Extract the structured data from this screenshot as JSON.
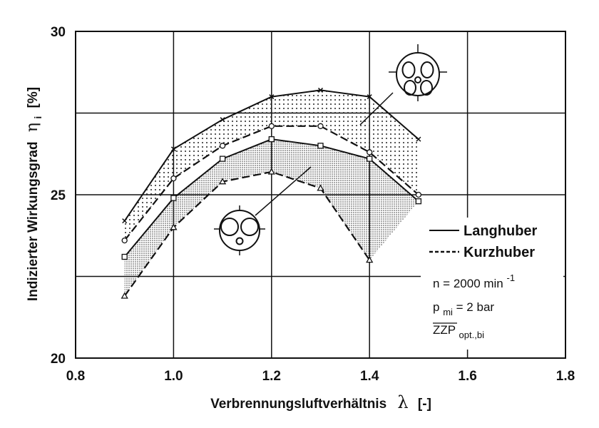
{
  "chart_data": {
    "type": "line",
    "xlabel_text": "Verbrennungsluftverhältnis",
    "xlabel_symbol": "λ",
    "xlabel_unit": "[-]",
    "ylabel_text": "Indizierter Wirkungsgrad",
    "ylabel_symbol": "η",
    "ylabel_sub": "i",
    "ylabel_unit": "[%]",
    "xlim": [
      0.8,
      1.8
    ],
    "ylim": [
      20,
      30
    ],
    "x_ticks": [
      "0.8",
      "1.0",
      "1.2",
      "1.4",
      "1.6",
      "1.8"
    ],
    "y_ticks": [
      "20",
      "25",
      "30"
    ],
    "grid": true,
    "legend": [
      {
        "label": "Langhuber",
        "style": "solid"
      },
      {
        "label": "Kurzhuber",
        "style": "dashed"
      }
    ],
    "conditions": {
      "n_text": "n = 2000 min",
      "n_exp": "-1",
      "p_text": "p",
      "p_sub": "mi",
      "p_rest": " = 2 bar",
      "zzp_text": "ZZP",
      "zzp_sub": "opt.,bi"
    },
    "series": [
      {
        "group": "four-valve",
        "style": "solid",
        "marker": "x",
        "x": [
          0.9,
          1.0,
          1.1,
          1.2,
          1.3,
          1.4,
          1.5
        ],
        "y": [
          24.2,
          26.4,
          27.3,
          28.0,
          28.2,
          28.0,
          26.7
        ]
      },
      {
        "group": "four-valve",
        "style": "dashed",
        "marker": "o",
        "x": [
          0.9,
          1.0,
          1.1,
          1.2,
          1.3,
          1.4,
          1.5
        ],
        "y": [
          23.6,
          25.5,
          26.5,
          27.1,
          27.1,
          26.3,
          25.0
        ]
      },
      {
        "group": "two-valve",
        "style": "solid",
        "marker": "square",
        "x": [
          0.9,
          1.0,
          1.1,
          1.2,
          1.3,
          1.4,
          1.5
        ],
        "y": [
          23.1,
          24.9,
          26.1,
          26.7,
          26.5,
          26.1,
          24.8
        ]
      },
      {
        "group": "two-valve",
        "style": "dashed",
        "marker": "triangle",
        "x": [
          0.9,
          1.0,
          1.1,
          1.2,
          1.3,
          1.4
        ],
        "y": [
          21.9,
          24.0,
          25.4,
          25.7,
          25.2,
          23.0
        ]
      }
    ]
  }
}
